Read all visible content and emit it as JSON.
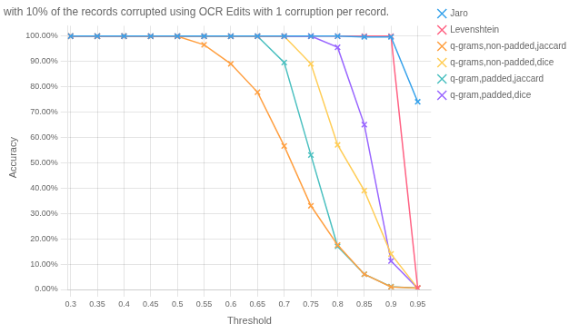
{
  "chart_data": {
    "type": "line",
    "title": "with 10% of the records corrupted using OCR Edits with 1 corruption per record.",
    "xlabel": "Threshold",
    "ylabel": "Accuracy",
    "x": [
      0.3,
      0.35,
      0.4,
      0.45,
      0.5,
      0.55,
      0.6,
      0.65,
      0.7,
      0.75,
      0.8,
      0.85,
      0.9,
      0.95
    ],
    "series": [
      {
        "name": "Jaro",
        "marker": "x",
        "values": [
          0.999,
          0.999,
          0.999,
          0.999,
          0.999,
          0.999,
          0.999,
          0.999,
          0.999,
          0.999,
          0.999,
          0.996,
          0.996,
          0.74
        ]
      },
      {
        "name": "Levenshtein",
        "marker": "x",
        "values": [
          0.999,
          0.999,
          0.999,
          0.999,
          0.999,
          0.999,
          0.999,
          0.999,
          0.999,
          0.999,
          0.999,
          0.999,
          0.999,
          0.005
        ]
      },
      {
        "name": "q-grams,non-padded,jaccard",
        "marker": "x",
        "values": [
          0.999,
          0.999,
          0.999,
          0.9985,
          0.9985,
          0.965,
          0.89,
          0.778,
          0.566,
          0.33,
          0.175,
          0.06,
          0.01,
          0.005
        ]
      },
      {
        "name": "q-grams,non-padded,dice",
        "marker": "x",
        "values": [
          0.999,
          0.999,
          0.999,
          0.9985,
          0.9985,
          0.9985,
          0.9985,
          0.9985,
          0.9985,
          0.89,
          0.57,
          0.39,
          0.14,
          0.005
        ]
      },
      {
        "name": "q-gram,padded,jaccard",
        "marker": "x",
        "values": [
          0.999,
          0.999,
          0.999,
          0.9985,
          0.9985,
          0.9985,
          0.9985,
          0.9985,
          0.895,
          0.53,
          0.17,
          0.06,
          0.011,
          0.005
        ]
      },
      {
        "name": "q-gram,padded,dice",
        "marker": "x",
        "values": [
          0.999,
          0.999,
          0.999,
          0.9985,
          0.9985,
          0.9985,
          0.9985,
          0.9985,
          0.9985,
          0.999,
          0.955,
          0.65,
          0.112,
          0.005
        ]
      }
    ],
    "xlim": [
      0.295,
      0.975
    ],
    "ylim": [
      0.0,
      1.04
    ],
    "xticks": [
      0.3,
      0.35,
      0.4,
      0.45,
      0.5,
      0.55,
      0.6,
      0.65,
      0.7,
      0.75,
      0.8,
      0.85,
      0.9,
      0.95
    ],
    "yticks": [
      {
        "value": 0.0,
        "label": "0.00%"
      },
      {
        "value": 0.1,
        "label": "10.00%"
      },
      {
        "value": 0.2,
        "label": "20.00%"
      },
      {
        "value": 0.3,
        "label": "30.00%"
      },
      {
        "value": 0.4,
        "label": "40.00%"
      },
      {
        "value": 0.5,
        "label": "50.00%"
      },
      {
        "value": 0.6,
        "label": "60.00%"
      },
      {
        "value": 0.7,
        "label": "70.00%"
      },
      {
        "value": 0.8,
        "label": "80.00%"
      },
      {
        "value": 0.9,
        "label": "90.00%"
      },
      {
        "value": 1.0,
        "label": "100.00%"
      }
    ],
    "grid": true,
    "legend": "right"
  }
}
